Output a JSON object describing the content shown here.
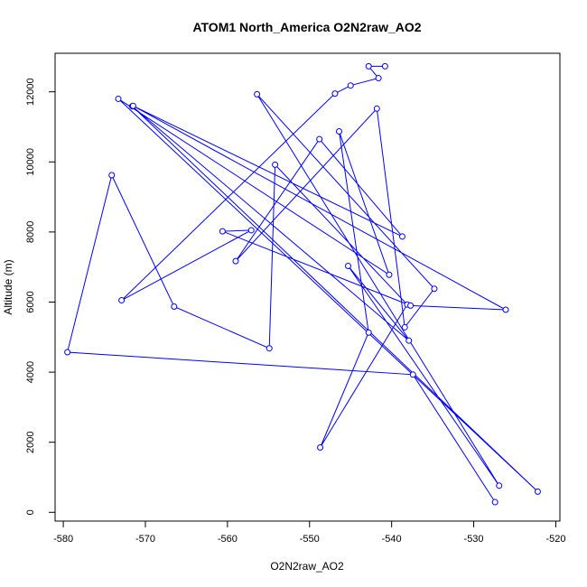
{
  "chart_data": {
    "type": "line",
    "title": "ATOM1 North_America O2N2raw_AO2",
    "xlabel": "O2N2raw_AO2",
    "ylabel": "Altitude (m)",
    "xlim": [
      -581,
      -519.5
    ],
    "ylim": [
      -250,
      13100
    ],
    "xticks": [
      -580,
      -570,
      -560,
      -550,
      -540,
      -530,
      -520
    ],
    "yticks": [
      0,
      2000,
      4000,
      6000,
      8000,
      10000,
      12000
    ],
    "grid": false,
    "legend": "none",
    "series": [
      {
        "color": "#0000ff",
        "marker": "open-circle",
        "x": [
          -527.4,
          -537.4,
          -579.5,
          -574.1,
          -566.5,
          -554.9,
          -554.2,
          -538.1,
          -548.7,
          -542.8,
          -546.4,
          -540.3,
          -573.3,
          -522.2,
          -571.6,
          -537.9,
          -545.3,
          -526.9,
          -556.4,
          -534.8,
          -538.4,
          -541.8,
          -559.0,
          -548.8,
          -538.7,
          -571.5,
          -526.1,
          -537.7,
          -560.6,
          -557.1,
          -572.9,
          -546.9,
          -545.0,
          -541.6,
          -542.8,
          -540.8
        ],
        "y": [
          290,
          3930,
          4570,
          9620,
          5870,
          4680,
          9920,
          5930,
          1850,
          5130,
          10870,
          6780,
          11800,
          590,
          11590,
          4900,
          7030,
          760,
          11930,
          6380,
          5280,
          11520,
          7170,
          10650,
          7870,
          11600,
          5780,
          5900,
          8020,
          8050,
          6050,
          11950,
          12180,
          12390,
          12730,
          12730
        ]
      }
    ]
  }
}
